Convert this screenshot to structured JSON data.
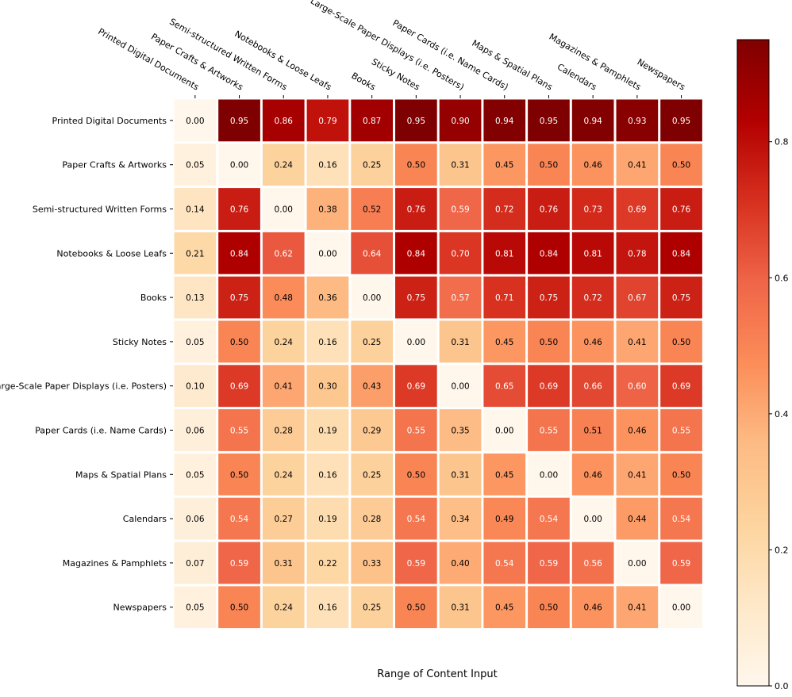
{
  "chart_data": {
    "type": "heatmap",
    "title": "",
    "xlabel": "Range of Content Input",
    "ylabel": "",
    "x_categories": [
      "Printed Digital Documents",
      "Paper Crafts & Artworks",
      "Semi-structured Written Forms",
      "Notebooks & Loose Leafs",
      "Books",
      "Sticky Notes",
      "Large-Scale Paper Displays (i.e. Posters)",
      "Paper Cards (i.e. Name Cards)",
      "Maps & Spatial Plans",
      "Calendars",
      "Magazines & Pamphlets",
      "Newspapers"
    ],
    "y_categories": [
      "Printed Digital Documents",
      "Paper Crafts & Artworks",
      "Semi-structured Written Forms",
      "Notebooks & Loose Leafs",
      "Books",
      "Sticky Notes",
      "Large-Scale Paper Displays (i.e. Posters)",
      "Paper Cards (i.e. Name Cards)",
      "Maps & Spatial Plans",
      "Calendars",
      "Magazines & Pamphlets",
      "Newspapers"
    ],
    "values": [
      [
        0.0,
        0.95,
        0.86,
        0.79,
        0.87,
        0.95,
        0.9,
        0.94,
        0.95,
        0.94,
        0.93,
        0.95
      ],
      [
        0.05,
        0.0,
        0.24,
        0.16,
        0.25,
        0.5,
        0.31,
        0.45,
        0.5,
        0.46,
        0.41,
        0.5
      ],
      [
        0.14,
        0.76,
        0.0,
        0.38,
        0.52,
        0.76,
        0.59,
        0.72,
        0.76,
        0.73,
        0.69,
        0.76
      ],
      [
        0.21,
        0.84,
        0.62,
        0.0,
        0.64,
        0.84,
        0.7,
        0.81,
        0.84,
        0.81,
        0.78,
        0.84
      ],
      [
        0.13,
        0.75,
        0.48,
        0.36,
        0.0,
        0.75,
        0.57,
        0.71,
        0.75,
        0.72,
        0.67,
        0.75
      ],
      [
        0.05,
        0.5,
        0.24,
        0.16,
        0.25,
        0.0,
        0.31,
        0.45,
        0.5,
        0.46,
        0.41,
        0.5
      ],
      [
        0.1,
        0.69,
        0.41,
        0.3,
        0.43,
        0.69,
        0.0,
        0.65,
        0.69,
        0.66,
        0.6,
        0.69
      ],
      [
        0.06,
        0.55,
        0.28,
        0.19,
        0.29,
        0.55,
        0.35,
        0.0,
        0.55,
        0.51,
        0.46,
        0.55
      ],
      [
        0.05,
        0.5,
        0.24,
        0.16,
        0.25,
        0.5,
        0.31,
        0.45,
        0.0,
        0.46,
        0.41,
        0.5
      ],
      [
        0.06,
        0.54,
        0.27,
        0.19,
        0.28,
        0.54,
        0.34,
        0.49,
        0.54,
        0.0,
        0.44,
        0.54
      ],
      [
        0.07,
        0.59,
        0.31,
        0.22,
        0.33,
        0.59,
        0.4,
        0.54,
        0.59,
        0.56,
        0.0,
        0.59
      ],
      [
        0.05,
        0.5,
        0.24,
        0.16,
        0.25,
        0.5,
        0.31,
        0.45,
        0.5,
        0.46,
        0.41,
        0.0
      ]
    ],
    "value_format": "0.00",
    "colormap": "OrRd",
    "colormap_stops": [
      "#fff7ec",
      "#fee8c8",
      "#fdd49e",
      "#fdbb84",
      "#fc8d59",
      "#ef6548",
      "#d7301f",
      "#b30000",
      "#7f0000"
    ],
    "vmin": 0,
    "vmax": 0.95,
    "colorbar": {
      "ticks": [
        0.0,
        0.2,
        0.4,
        0.6,
        0.8
      ],
      "tick_labels": [
        "0.0",
        "0.2",
        "0.4",
        "0.6",
        "0.8"
      ],
      "placement": "right"
    },
    "x_tick_position": "top",
    "grid": false,
    "cell_separator_color": "#ffffff"
  }
}
